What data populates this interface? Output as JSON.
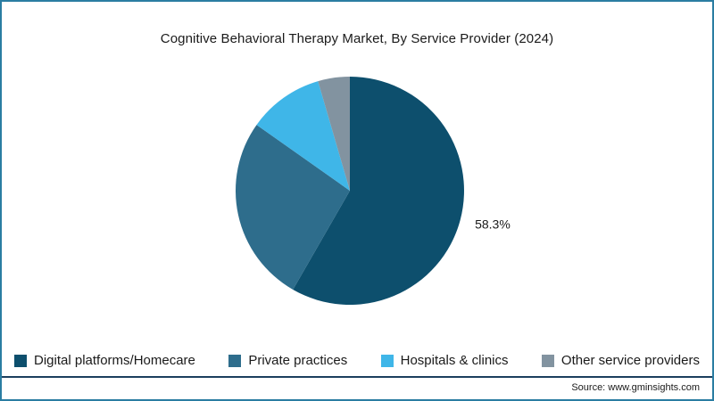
{
  "title": "Cognitive Behavioral Therapy Market, By Service Provider (2024)",
  "source_text": "Source: www.gminsights.com",
  "chart_data": {
    "type": "pie",
    "title": "Cognitive Behavioral Therapy Market, By Service Provider (2024)",
    "labels": [
      "Digital platforms/Homecare",
      "Private practices",
      "Hospitals & clinics",
      "Other service providers"
    ],
    "values": [
      58.3,
      26.5,
      10.7,
      4.5
    ],
    "colors": [
      "#0d4f6d",
      "#2e6d8c",
      "#3fb6e8",
      "#8293a0"
    ],
    "data_labels": [
      "58.3%",
      "",
      "",
      ""
    ],
    "start_angle": "top",
    "direction": "clockwise",
    "legend_position": "bottom"
  }
}
